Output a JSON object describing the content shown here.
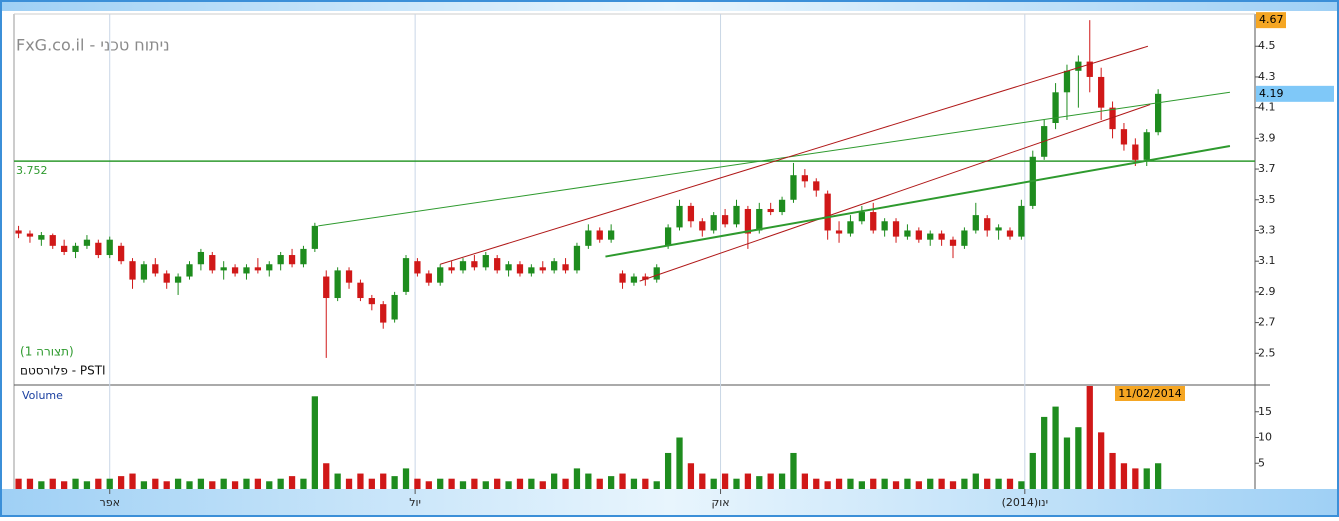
{
  "chart_data": {
    "type": "candlestick",
    "title": "FxG.co.il - ניתוח טכני",
    "subtitle": "(תצורה 1)",
    "symbol": "פלורסטם - PSTI",
    "volume_title": "Volume",
    "date_label": "11/02/2014",
    "high_label": 4.67,
    "last_label": 4.19,
    "level": 3.752,
    "xlim": [
      -0.4,
      108.5
    ],
    "xticks": [
      {
        "value": 8,
        "label": "אפר"
      },
      {
        "value": 34.8,
        "label": "יול"
      },
      {
        "value": 61.6,
        "label": "אוק"
      },
      {
        "value": 88.3,
        "label": "ינו(2014)"
      }
    ],
    "ylim": [
      2.3,
      4.71
    ],
    "yticks": [
      {
        "value": 2.5,
        "label": "2.5"
      },
      {
        "value": 2.7,
        "label": "2.7"
      },
      {
        "value": 2.9,
        "label": "2.9"
      },
      {
        "value": 3.1,
        "label": "3.1"
      },
      {
        "value": 3.3,
        "label": "3.3"
      },
      {
        "value": 3.5,
        "label": "3.5"
      },
      {
        "value": 3.7,
        "label": "3.7"
      },
      {
        "value": 3.9,
        "label": "3.9"
      },
      {
        "value": 4.1,
        "label": "4.1"
      },
      {
        "value": 4.3,
        "label": "4.3"
      },
      {
        "value": 4.5,
        "label": "4.5"
      }
    ],
    "vol_ylim": [
      0,
      20
    ],
    "vol_yticks": [
      5,
      10,
      15
    ],
    "up_color": "#1e8c1e",
    "down_color": "#d01818",
    "candles": [
      [
        3.3,
        3.33,
        3.25,
        3.28
      ],
      [
        3.28,
        3.3,
        3.22,
        3.26
      ],
      [
        3.24,
        3.29,
        3.2,
        3.27
      ],
      [
        3.27,
        3.28,
        3.18,
        3.2
      ],
      [
        3.2,
        3.24,
        3.14,
        3.16
      ],
      [
        3.16,
        3.22,
        3.12,
        3.2
      ],
      [
        3.2,
        3.27,
        3.18,
        3.24
      ],
      [
        3.22,
        3.24,
        3.12,
        3.14
      ],
      [
        3.14,
        3.26,
        3.12,
        3.24
      ],
      [
        3.2,
        3.22,
        3.08,
        3.1
      ],
      [
        3.1,
        3.12,
        2.92,
        2.98
      ],
      [
        2.98,
        3.1,
        2.96,
        3.08
      ],
      [
        3.08,
        3.12,
        3.0,
        3.02
      ],
      [
        3.02,
        3.04,
        2.92,
        2.96
      ],
      [
        2.96,
        3.02,
        2.88,
        3.0
      ],
      [
        3.0,
        3.1,
        2.98,
        3.08
      ],
      [
        3.08,
        3.18,
        3.04,
        3.16
      ],
      [
        3.14,
        3.16,
        3.02,
        3.04
      ],
      [
        3.04,
        3.1,
        2.98,
        3.06
      ],
      [
        3.06,
        3.08,
        3.0,
        3.02
      ],
      [
        3.02,
        3.08,
        2.98,
        3.06
      ],
      [
        3.06,
        3.12,
        3.02,
        3.04
      ],
      [
        3.04,
        3.1,
        3.0,
        3.08
      ],
      [
        3.08,
        3.16,
        3.04,
        3.14
      ],
      [
        3.14,
        3.18,
        3.06,
        3.08
      ],
      [
        3.08,
        3.2,
        3.06,
        3.18
      ],
      [
        3.18,
        3.35,
        3.16,
        3.33
      ],
      [
        3.0,
        3.04,
        2.47,
        2.86
      ],
      [
        2.86,
        3.06,
        2.84,
        3.04
      ],
      [
        3.04,
        3.06,
        2.92,
        2.96
      ],
      [
        2.96,
        2.98,
        2.84,
        2.86
      ],
      [
        2.86,
        2.88,
        2.78,
        2.82
      ],
      [
        2.82,
        2.84,
        2.66,
        2.7
      ],
      [
        2.72,
        2.9,
        2.7,
        2.88
      ],
      [
        2.9,
        3.14,
        2.88,
        3.12
      ],
      [
        3.1,
        3.12,
        3.0,
        3.02
      ],
      [
        3.02,
        3.04,
        2.94,
        2.96
      ],
      [
        2.96,
        3.08,
        2.94,
        3.06
      ],
      [
        3.06,
        3.1,
        3.02,
        3.04
      ],
      [
        3.04,
        3.12,
        3.02,
        3.1
      ],
      [
        3.1,
        3.14,
        3.04,
        3.06
      ],
      [
        3.06,
        3.16,
        3.04,
        3.14
      ],
      [
        3.12,
        3.14,
        3.02,
        3.04
      ],
      [
        3.04,
        3.1,
        3.0,
        3.08
      ],
      [
        3.08,
        3.1,
        3.0,
        3.02
      ],
      [
        3.02,
        3.08,
        3.0,
        3.06
      ],
      [
        3.06,
        3.1,
        3.02,
        3.04
      ],
      [
        3.04,
        3.12,
        3.02,
        3.1
      ],
      [
        3.08,
        3.12,
        3.02,
        3.04
      ],
      [
        3.04,
        3.22,
        3.02,
        3.2
      ],
      [
        3.2,
        3.34,
        3.18,
        3.3
      ],
      [
        3.3,
        3.32,
        3.22,
        3.24
      ],
      [
        3.24,
        3.34,
        3.22,
        3.3
      ],
      [
        3.02,
        3.04,
        2.92,
        2.96
      ],
      [
        2.96,
        3.02,
        2.94,
        3.0
      ],
      [
        3.0,
        3.02,
        2.94,
        2.98
      ],
      [
        2.98,
        3.08,
        2.96,
        3.06
      ],
      [
        3.2,
        3.34,
        3.18,
        3.32
      ],
      [
        3.32,
        3.5,
        3.3,
        3.46
      ],
      [
        3.46,
        3.48,
        3.32,
        3.36
      ],
      [
        3.36,
        3.38,
        3.26,
        3.3
      ],
      [
        3.3,
        3.42,
        3.28,
        3.4
      ],
      [
        3.4,
        3.44,
        3.32,
        3.34
      ],
      [
        3.34,
        3.5,
        3.32,
        3.46
      ],
      [
        3.44,
        3.46,
        3.18,
        3.28
      ],
      [
        3.3,
        3.48,
        3.28,
        3.44
      ],
      [
        3.44,
        3.48,
        3.4,
        3.42
      ],
      [
        3.42,
        3.52,
        3.4,
        3.5
      ],
      [
        3.5,
        3.74,
        3.48,
        3.66
      ],
      [
        3.66,
        3.7,
        3.58,
        3.62
      ],
      [
        3.62,
        3.64,
        3.52,
        3.56
      ],
      [
        3.54,
        3.56,
        3.24,
        3.3
      ],
      [
        3.3,
        3.36,
        3.22,
        3.28
      ],
      [
        3.28,
        3.4,
        3.26,
        3.36
      ],
      [
        3.36,
        3.46,
        3.34,
        3.42
      ],
      [
        3.42,
        3.48,
        3.28,
        3.3
      ],
      [
        3.3,
        3.38,
        3.26,
        3.36
      ],
      [
        3.36,
        3.38,
        3.22,
        3.26
      ],
      [
        3.26,
        3.34,
        3.24,
        3.3
      ],
      [
        3.3,
        3.32,
        3.22,
        3.24
      ],
      [
        3.24,
        3.3,
        3.2,
        3.28
      ],
      [
        3.28,
        3.3,
        3.2,
        3.24
      ],
      [
        3.24,
        3.26,
        3.12,
        3.2
      ],
      [
        3.2,
        3.32,
        3.18,
        3.3
      ],
      [
        3.3,
        3.48,
        3.28,
        3.4
      ],
      [
        3.38,
        3.4,
        3.26,
        3.3
      ],
      [
        3.3,
        3.34,
        3.24,
        3.32
      ],
      [
        3.3,
        3.32,
        3.24,
        3.26
      ],
      [
        3.26,
        3.5,
        3.24,
        3.46
      ],
      [
        3.46,
        3.82,
        3.44,
        3.78
      ],
      [
        3.78,
        4.02,
        3.76,
        3.98
      ],
      [
        4.0,
        4.26,
        3.96,
        4.2
      ],
      [
        4.2,
        4.38,
        4.02,
        4.34
      ],
      [
        4.34,
        4.44,
        4.1,
        4.4
      ],
      [
        4.4,
        4.67,
        4.2,
        4.3
      ],
      [
        4.3,
        4.36,
        4.02,
        4.1
      ],
      [
        4.1,
        4.14,
        3.9,
        3.96
      ],
      [
        3.96,
        4.0,
        3.82,
        3.86
      ],
      [
        3.86,
        3.9,
        3.72,
        3.76
      ],
      [
        3.76,
        3.96,
        3.72,
        3.94
      ],
      [
        3.94,
        4.22,
        3.92,
        4.19
      ]
    ],
    "volume": [
      2,
      2,
      1.5,
      2,
      1.5,
      2,
      1.5,
      2,
      2,
      2.5,
      3,
      1.5,
      2,
      1.5,
      2,
      1.5,
      2,
      1.5,
      2,
      1.5,
      2,
      2,
      1.5,
      2,
      2.5,
      2,
      18,
      5,
      3,
      2,
      3,
      2,
      3,
      2.5,
      4,
      2,
      1.5,
      2,
      2,
      1.5,
      2,
      1.5,
      2,
      1.5,
      2,
      2,
      1.5,
      3,
      2,
      4,
      3,
      2,
      2.5,
      3,
      2,
      2,
      1.5,
      7,
      10,
      5,
      3,
      2,
      3,
      2,
      3,
      2.5,
      3,
      3,
      7,
      3,
      2,
      1.5,
      2,
      2,
      1.5,
      2,
      2,
      1.5,
      2,
      1.5,
      2,
      2,
      1.5,
      2,
      3,
      2,
      2,
      2,
      1.5,
      7,
      14,
      16,
      10,
      12,
      20,
      11,
      7,
      5,
      4,
      4,
      5
    ],
    "lines": [
      {
        "color": "#2e9a2e",
        "width": 1,
        "x": [
          26.3,
          106.3
        ],
        "y": [
          3.33,
          4.2
        ]
      },
      {
        "color": "#b01818",
        "width": 1,
        "x": [
          37.0,
          99.1
        ],
        "y": [
          3.08,
          4.5
        ]
      },
      {
        "color": "#b01818",
        "width": 1,
        "x": [
          54.5,
          99.3
        ],
        "y": [
          2.97,
          4.12
        ]
      },
      {
        "color": "#2e9a2e",
        "width": 2,
        "x": [
          51.5,
          106.3
        ],
        "y": [
          3.13,
          3.85
        ]
      }
    ]
  }
}
